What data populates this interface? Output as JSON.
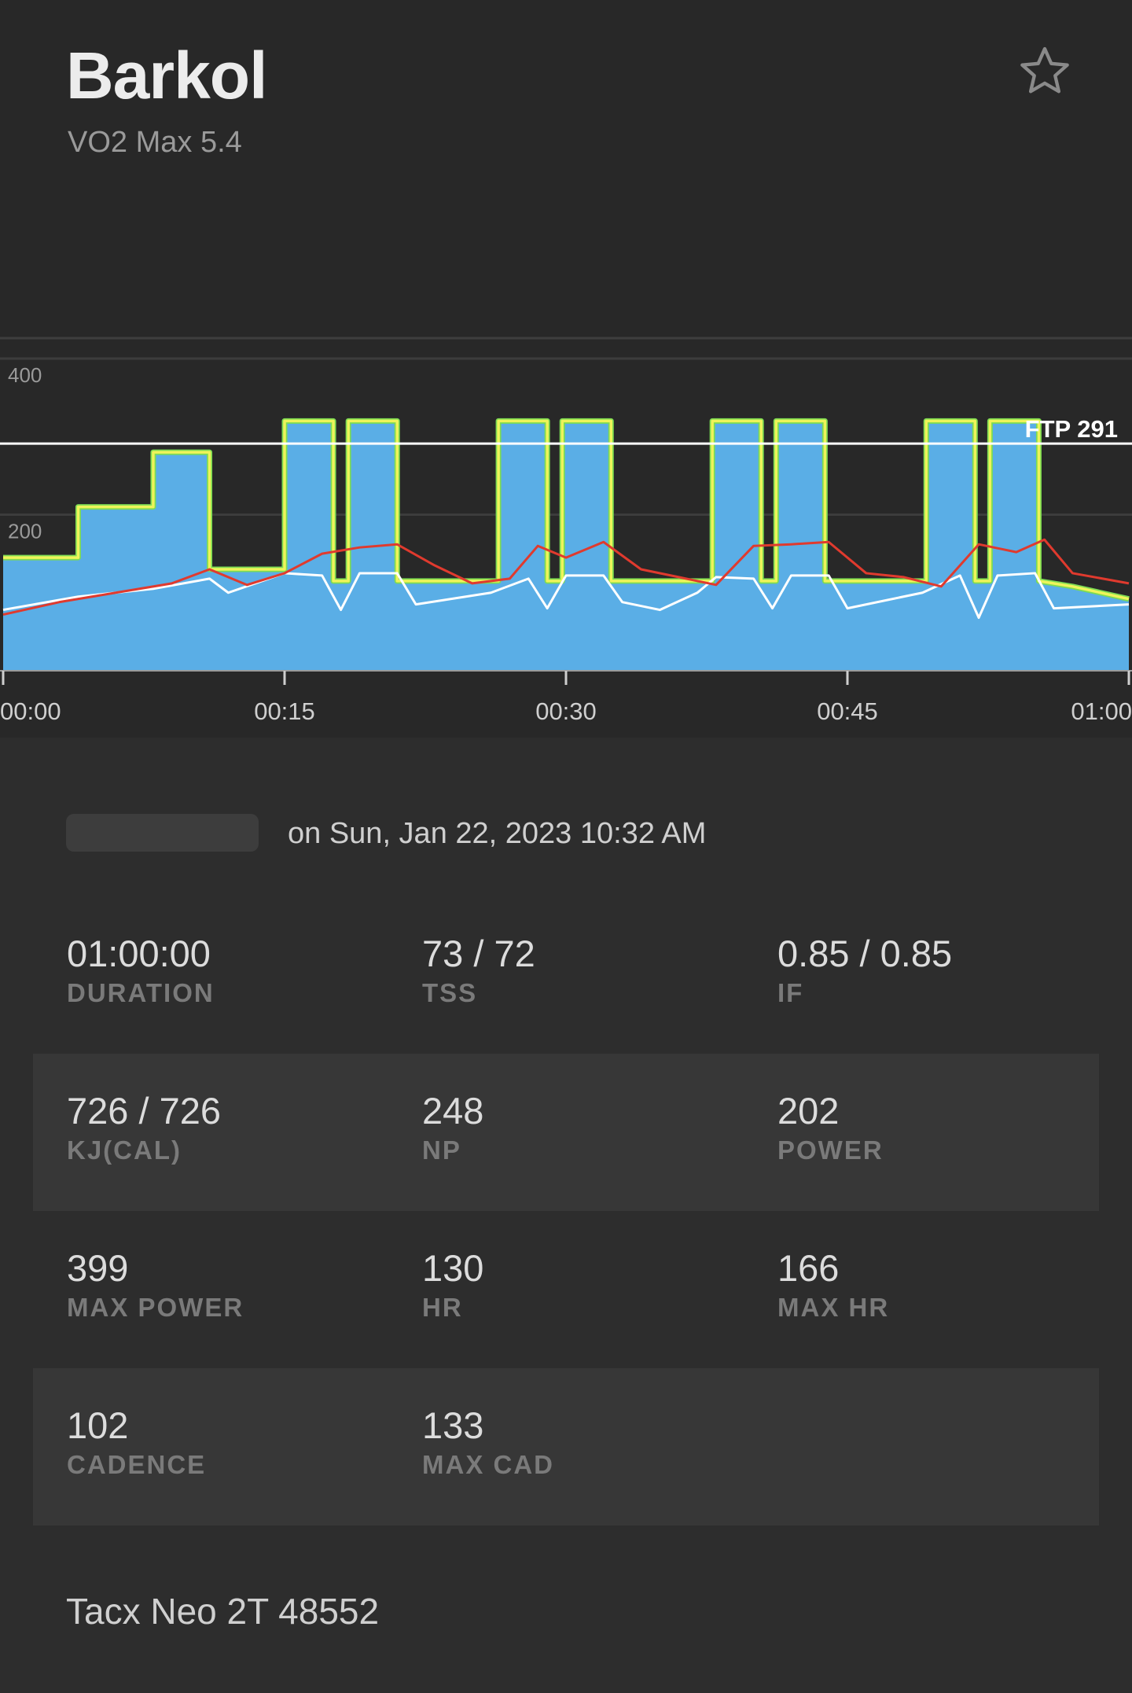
{
  "header": {
    "title": "Barkol",
    "subtitle": "VO2 Max 5.4",
    "favorite_icon": "star-outline-icon"
  },
  "chart": {
    "ftp_label": "FTP 291",
    "y_ticks": [
      "400",
      "200"
    ],
    "x_ticks": [
      "00:00",
      "00:15",
      "00:30",
      "00:45",
      "01:00"
    ]
  },
  "chart_data": {
    "type": "area",
    "title": "",
    "xlabel": "",
    "ylabel": "",
    "x_unit": "minutes",
    "xlim": [
      0,
      60
    ],
    "ylim": [
      0,
      400
    ],
    "y_ticks": [
      200,
      400
    ],
    "x_tick_labels": [
      "00:00",
      "00:15",
      "00:30",
      "00:45",
      "01:00"
    ],
    "grid": true,
    "legend": "none",
    "ftp": 291,
    "colors": {
      "power_fill": "#5aaee6",
      "target": "#eef45a",
      "hr": "#e03a2e",
      "cadence": "#ffffff",
      "ftp_line": "#ffffff"
    },
    "series": [
      {
        "role": "target-power",
        "x": [
          0,
          4,
          4,
          8,
          8,
          11,
          11,
          15,
          15,
          17.6,
          17.6,
          18.4,
          18.4,
          21,
          21,
          26.4,
          26.4,
          29,
          29,
          29.8,
          29.8,
          32.4,
          32.4,
          37.8,
          37.8,
          40.4,
          40.4,
          41.2,
          41.2,
          43.8,
          43.8,
          49.2,
          49.2,
          51.8,
          51.8,
          52.6,
          52.6,
          55.2,
          55.2,
          57,
          60
        ],
        "values": [
          145,
          145,
          210,
          210,
          280,
          280,
          130,
          130,
          320,
          320,
          115,
          115,
          320,
          320,
          115,
          115,
          320,
          320,
          115,
          115,
          320,
          320,
          115,
          115,
          320,
          320,
          115,
          115,
          320,
          320,
          115,
          115,
          320,
          320,
          115,
          115,
          320,
          320,
          115,
          108,
          92
        ]
      },
      {
        "role": "heart-rate",
        "x": [
          0,
          3,
          6,
          9,
          11,
          13,
          15,
          17,
          19,
          21,
          23,
          25,
          27,
          28.5,
          30,
          32,
          34,
          36,
          38,
          40,
          42,
          44,
          46,
          48,
          50,
          52,
          54,
          55.5,
          57,
          60
        ],
        "values": [
          72,
          88,
          100,
          112,
          130,
          110,
          125,
          150,
          158,
          162,
          135,
          112,
          118,
          160,
          145,
          165,
          130,
          120,
          110,
          160,
          162,
          165,
          125,
          120,
          108,
          162,
          152,
          168,
          125,
          112
        ]
      },
      {
        "role": "cadence",
        "x": [
          0,
          4,
          8,
          11,
          12,
          15,
          17,
          18,
          19,
          21,
          22,
          26,
          28,
          29,
          30,
          32,
          33,
          35,
          37,
          38,
          40,
          41,
          42,
          44,
          45,
          49,
          51,
          52,
          53,
          55,
          56,
          60
        ],
        "values": [
          78,
          95,
          105,
          118,
          100,
          125,
          122,
          78,
          125,
          125,
          85,
          100,
          118,
          80,
          122,
          122,
          88,
          78,
          100,
          120,
          118,
          80,
          122,
          122,
          80,
          100,
          122,
          68,
          122,
          125,
          80,
          85
        ]
      }
    ]
  },
  "workout": {
    "date_text": "on Sun, Jan 22, 2023 10:32 AM"
  },
  "stats": [
    [
      {
        "value": "01:00:00",
        "label": "DURATION"
      },
      {
        "value": "73 / 72",
        "label": "TSS"
      },
      {
        "value": "0.85 / 0.85",
        "label": "IF"
      }
    ],
    [
      {
        "value": "726 / 726",
        "label": "KJ(CAL)"
      },
      {
        "value": "248",
        "label": "NP"
      },
      {
        "value": "202",
        "label": "POWER"
      }
    ],
    [
      {
        "value": "399",
        "label": "MAX POWER"
      },
      {
        "value": "130",
        "label": "HR"
      },
      {
        "value": "166",
        "label": "MAX HR"
      }
    ],
    [
      {
        "value": "102",
        "label": "CADENCE"
      },
      {
        "value": "133",
        "label": "MAX CAD"
      }
    ]
  ],
  "device": "Tacx Neo 2T 48552"
}
